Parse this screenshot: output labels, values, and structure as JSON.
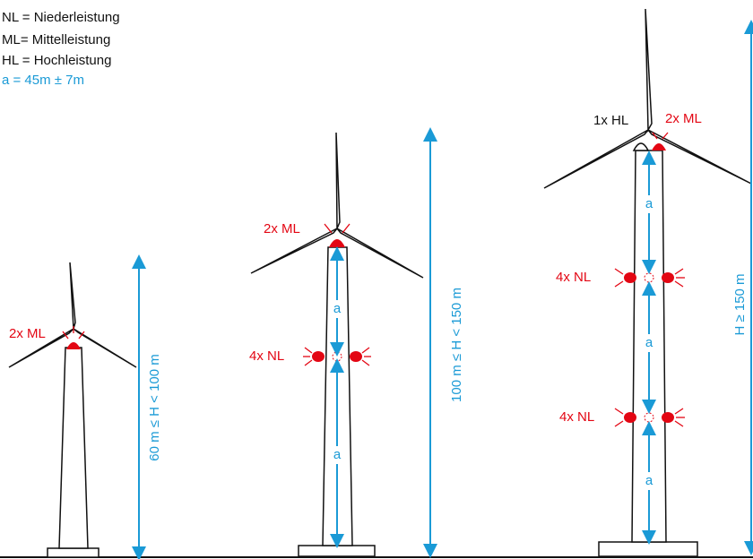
{
  "legend": [
    "NL = Niederleistung",
    "ML= Mittelleistung",
    "HL = Hochleistung",
    "a = 45m ± 7m"
  ],
  "turbines": [
    {
      "ml_label": "2x ML",
      "height_label": "60 m ≤ H < 100 m"
    },
    {
      "ml_label": "2x ML",
      "nl_label": "4x NL",
      "spacing": [
        "a",
        "a"
      ],
      "height_label": "100 m ≤ H < 150 m"
    },
    {
      "hl_label": "1x HL",
      "ml_label": "2x ML",
      "nl_labels": [
        "4x NL",
        "4x NL"
      ],
      "spacing": [
        "a",
        "a",
        "a"
      ],
      "height_label": "H ≥ 150 m"
    }
  ]
}
